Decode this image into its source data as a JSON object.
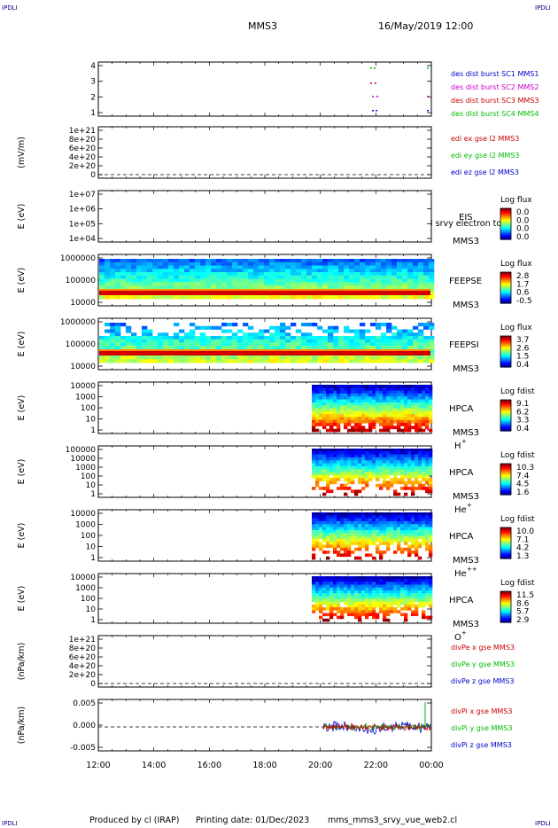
{
  "corner_label": "IPDLI",
  "header": {
    "title": "MMS3",
    "date": "16/May/2019 12:00"
  },
  "footer": {
    "produced": "Produced by cl (IRAP)",
    "printing": "Printing date: 01/Dec/2023",
    "file": "mms_mms3_srvy_vue_web2.cl"
  },
  "x_axis": {
    "ticks": [
      "12:00",
      "14:00",
      "16:00",
      "18:00",
      "20:00",
      "22:00",
      "00:00"
    ]
  },
  "chart_data": [
    {
      "type": "scatter",
      "ylabel": "",
      "yticks": [
        "4",
        "3",
        "2",
        "1"
      ],
      "legend": [
        {
          "text": "des dist burst SC1 MMS1",
          "color": "#0000cc"
        },
        {
          "text": "des dist burst SC2 MMS2",
          "color": "#cc00cc"
        },
        {
          "text": "des dist burst SC3 MMS3",
          "color": "#cc0000"
        },
        {
          "text": "des dist burst SC4 MMS4",
          "color": "#00bb00"
        }
      ]
    },
    {
      "type": "line",
      "ylabel": "(mV/m)",
      "yticks": [
        "1e+21",
        "8e+20",
        "6e+20",
        "4e+20",
        "2e+20",
        "0"
      ],
      "legend": [
        {
          "text": "edi ex gse l2 MMS3",
          "color": "#cc0000"
        },
        {
          "text": "edi ey gse l2 MMS3",
          "color": "#00bb00"
        },
        {
          "text": "edi ez gse l2 MMS3",
          "color": "#0000cc"
        }
      ]
    },
    {
      "type": "heatmap",
      "ylabel": "E (eV)",
      "yticks": [
        "1e+07",
        "1e+06",
        "1e+05",
        "1e+04"
      ],
      "instrument": [
        "EIS",
        "MMS3"
      ],
      "overlay": "l srvy electron to",
      "cbar_title": "Log flux",
      "cbar_ticks": [
        "0.0",
        "0.0",
        "0.0",
        "0.0"
      ]
    },
    {
      "type": "heatmap",
      "ylabel": "E (eV)",
      "yticks": [
        "1000000",
        "100000",
        "10000"
      ],
      "instrument": [
        "FEEPSE",
        "MMS3"
      ],
      "cbar_title": "Log flux",
      "cbar_ticks": [
        "2.8",
        "1.7",
        "0.6",
        "-0.5"
      ]
    },
    {
      "type": "heatmap",
      "ylabel": "E (eV)",
      "yticks": [
        "1000000",
        "100000",
        "10000"
      ],
      "instrument": [
        "FEEPSI",
        "MMS3"
      ],
      "cbar_title": "Log flux",
      "cbar_ticks": [
        "3.7",
        "2.6",
        "1.5",
        "0.4"
      ]
    },
    {
      "type": "heatmap",
      "ylabel": "E (eV)",
      "yticks": [
        "10000",
        "1000",
        "100",
        "10",
        "1"
      ],
      "instrument": [
        "HPCA",
        "MMS3"
      ],
      "species": "H",
      "charge": "+",
      "cbar_title": "Log fdist",
      "cbar_ticks": [
        "9.1",
        "6.2",
        "3.3",
        "0.4"
      ]
    },
    {
      "type": "heatmap",
      "ylabel": "E (eV)",
      "yticks": [
        "100000",
        "10000",
        "1000",
        "100",
        "10",
        "1"
      ],
      "instrument": [
        "HPCA",
        "MMS3"
      ],
      "species": "He",
      "charge": "+",
      "cbar_title": "Log fdist",
      "cbar_ticks": [
        "10.3",
        "7.4",
        "4.5",
        "1.6"
      ]
    },
    {
      "type": "heatmap",
      "ylabel": "E (eV)",
      "yticks": [
        "10000",
        "1000",
        "100",
        "10",
        "1"
      ],
      "instrument": [
        "HPCA",
        "MMS3"
      ],
      "species": "He",
      "charge": "++",
      "cbar_title": "Log fdist",
      "cbar_ticks": [
        "10.0",
        "7.1",
        "4.2",
        "1.3"
      ]
    },
    {
      "type": "heatmap",
      "ylabel": "E (eV)",
      "yticks": [
        "10000",
        "1000",
        "100",
        "10",
        "1"
      ],
      "instrument": [
        "HPCA",
        "MMS3"
      ],
      "species": "O",
      "charge": "+",
      "cbar_title": "Log fdist",
      "cbar_ticks": [
        "11.5",
        "8.6",
        "5.7",
        "2.9"
      ]
    },
    {
      "type": "line",
      "ylabel": "(nPa/km)",
      "yticks": [
        "1e+21",
        "8e+20",
        "6e+20",
        "4e+20",
        "2e+20",
        "0"
      ],
      "legend": [
        {
          "text": "divPe x gse MMS3",
          "color": "#cc0000"
        },
        {
          "text": "divPe y gse MMS3",
          "color": "#00bb00"
        },
        {
          "text": "divPe z gse MMS3",
          "color": "#0000cc"
        }
      ]
    },
    {
      "type": "line",
      "ylabel": "(nPa/km)",
      "yticks": [
        "0.005",
        "0.000",
        "-0.005"
      ],
      "legend": [
        {
          "text": "divPi x gse MMS3",
          "color": "#cc0000"
        },
        {
          "text": "divPi y gse MMS3",
          "color": "#00bb00"
        },
        {
          "text": "divPi z gse MMS3",
          "color": "#0000cc"
        }
      ]
    }
  ]
}
